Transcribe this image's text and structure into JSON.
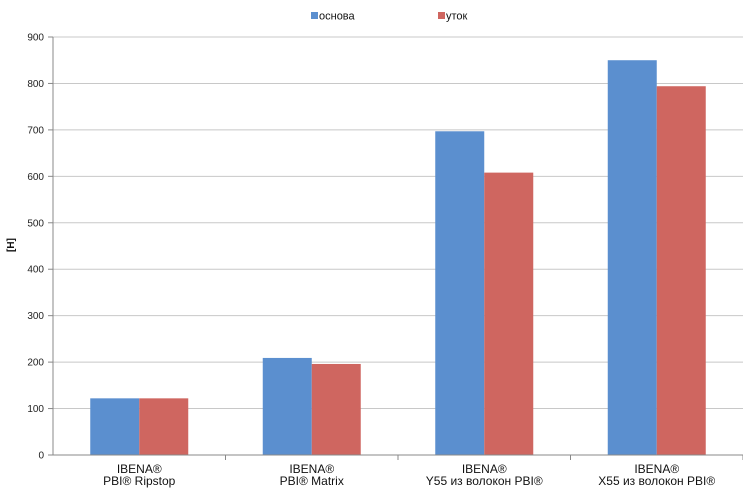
{
  "chart_data": {
    "type": "bar",
    "ylabel": "[H]",
    "ylim": [
      0,
      900
    ],
    "yticks": [
      "0",
      "100",
      "200",
      "300",
      "400",
      "500",
      "600",
      "700",
      "800",
      "900"
    ],
    "grid": true,
    "legend_position": "top",
    "categories": [
      [
        "IBENA®",
        "PBI® Ripstop"
      ],
      [
        "IBENA®",
        "PBI® Matrix"
      ],
      [
        "IBENA®",
        "Y55 из волокон PBI®"
      ],
      [
        "IBENA®",
        "X55 из волокон PBI®"
      ]
    ],
    "series": [
      {
        "name": "основа",
        "color": "#5B8FCF",
        "values": [
          122,
          209,
          697,
          850
        ]
      },
      {
        "name": "уток",
        "color": "#CF6660",
        "values": [
          122,
          196,
          608,
          794
        ]
      }
    ]
  }
}
